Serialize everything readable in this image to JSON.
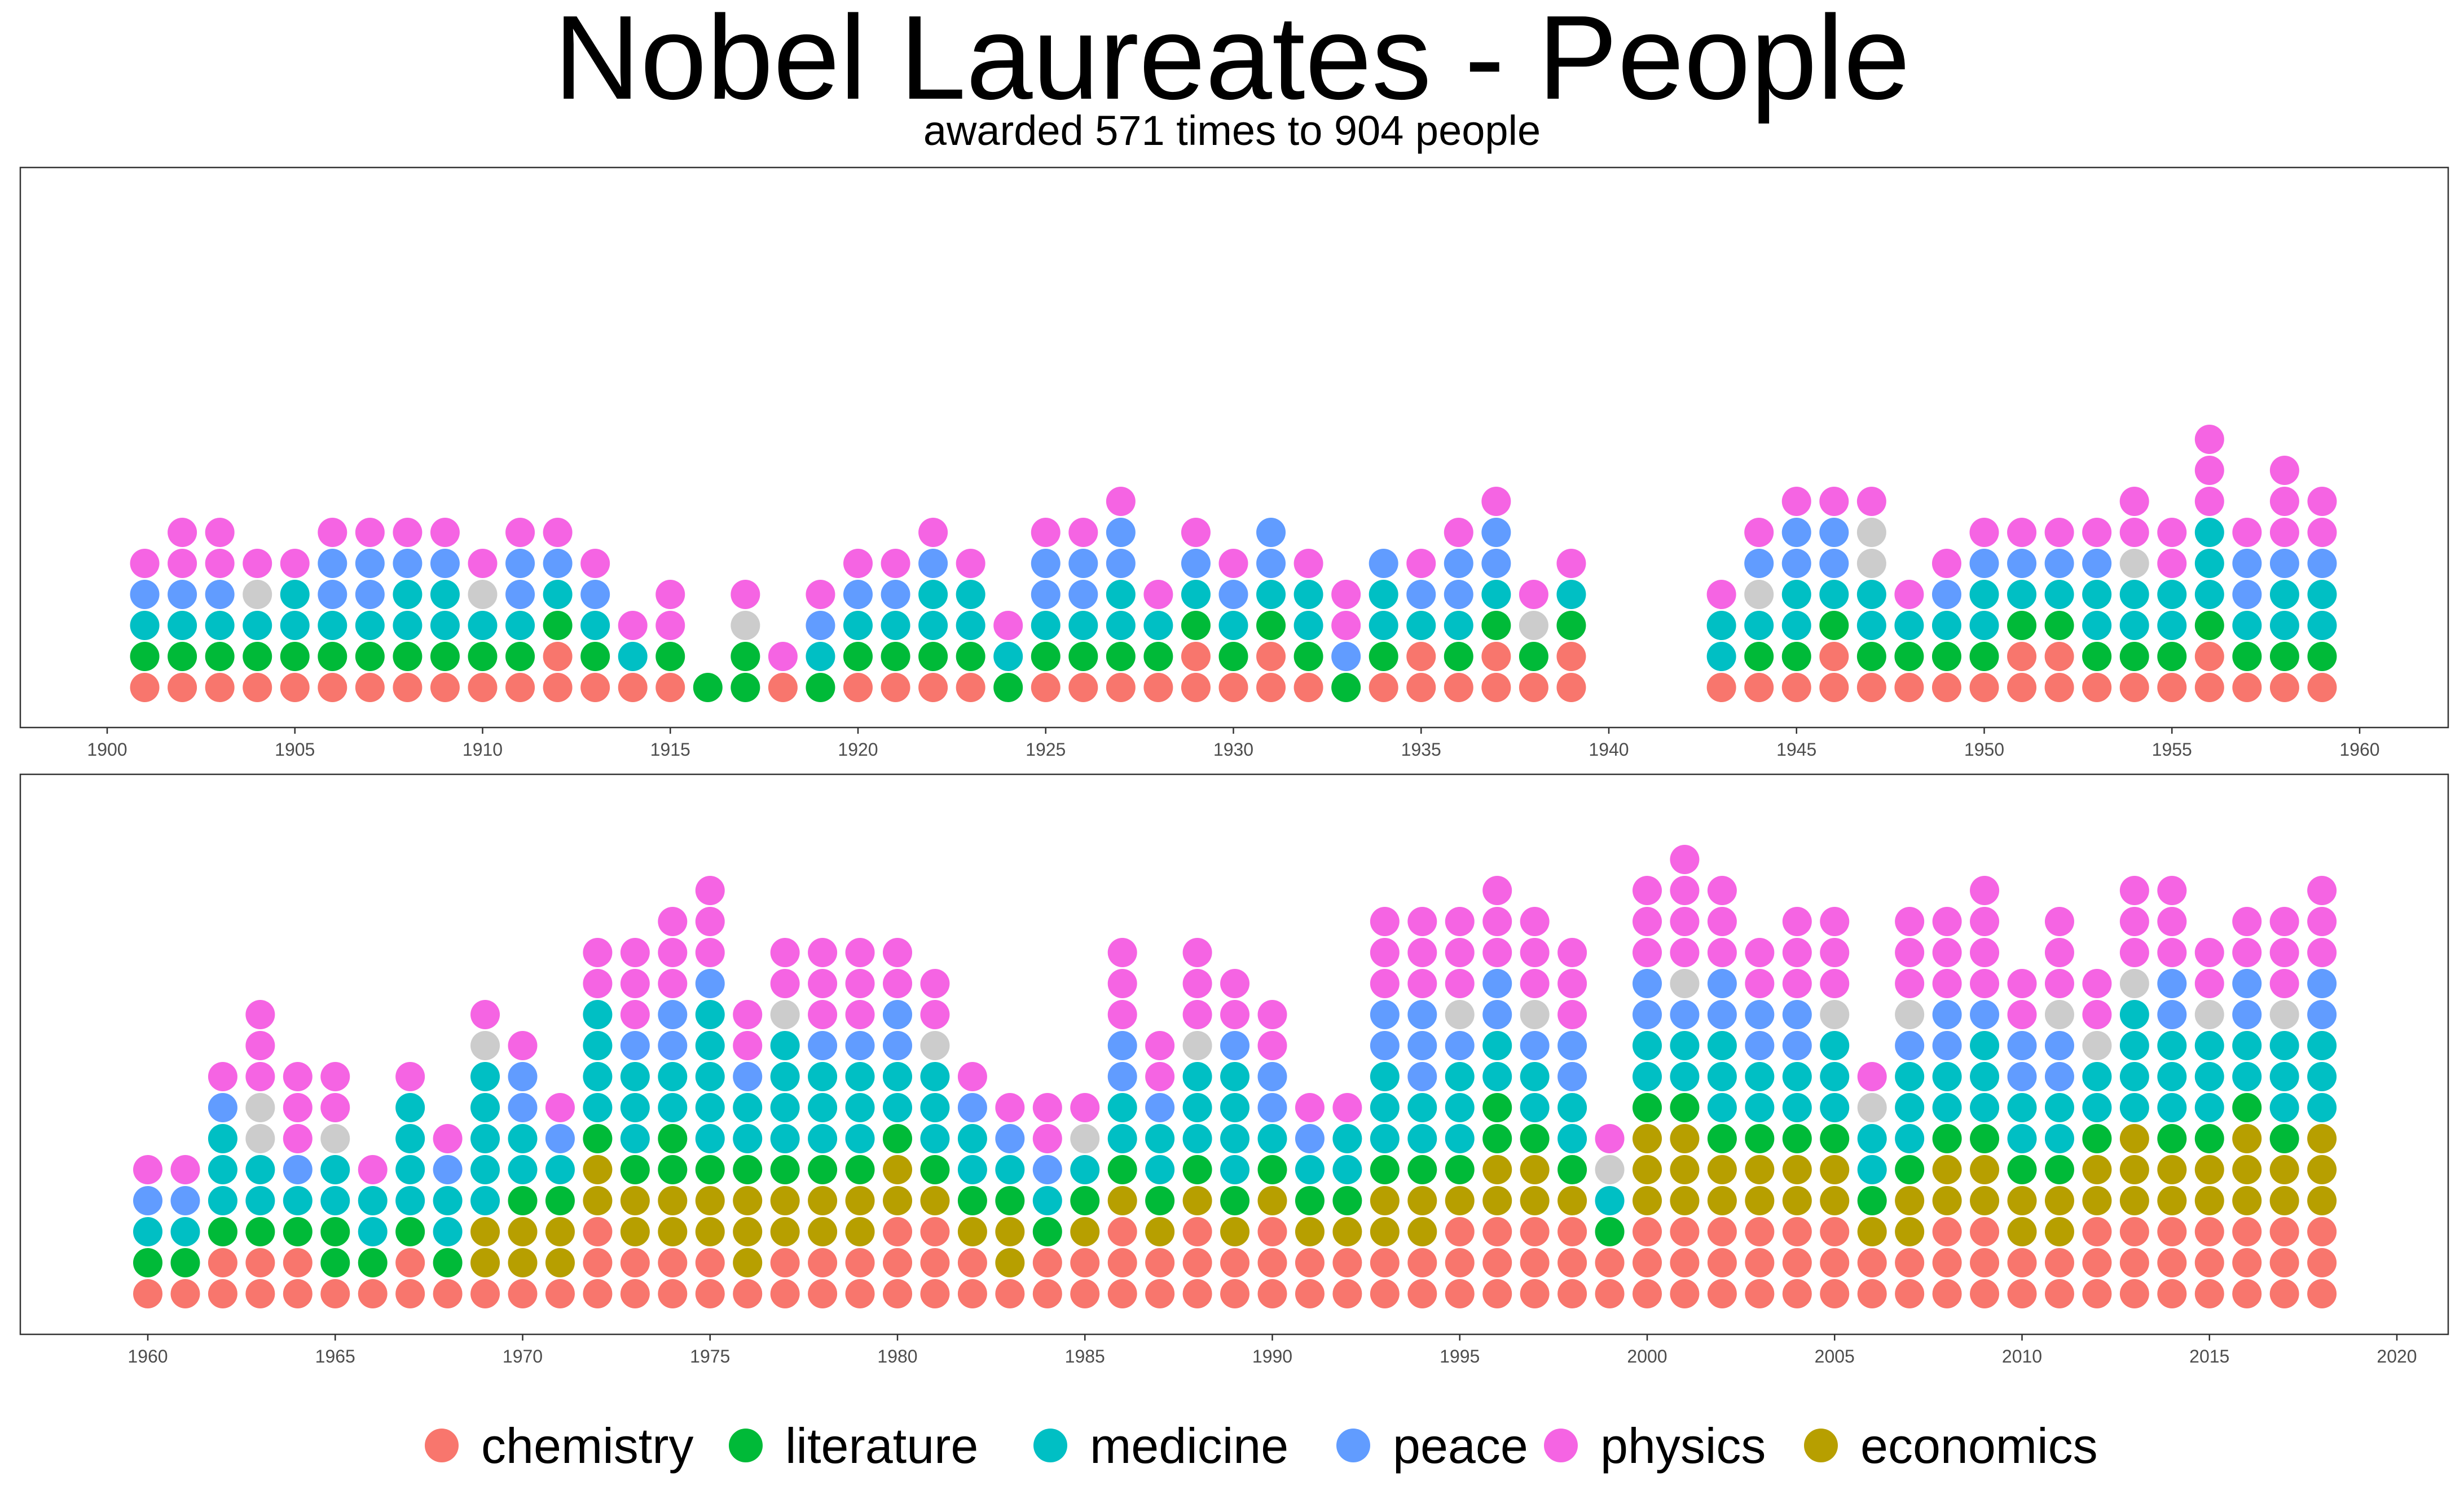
{
  "title": "Nobel Laureates - People",
  "subtitle": "awarded 571 times to 904 people",
  "categories": [
    "chemistry",
    "literature",
    "medicine",
    "peace",
    "physics",
    "economics"
  ],
  "colors": {
    "chemistry": "#F8766D",
    "literature": "#00BA38",
    "medicine": "#00BFC4",
    "peace": "#619CFF",
    "physics": "#F564E3",
    "economics": "#B79F00",
    "other": "#CCCCCC"
  },
  "chart_data": {
    "type": "scatter",
    "title": "Nobel Laureates - People",
    "subtitle": "awarded 571 times to 904 people",
    "legend_position": "bottom",
    "grid": false,
    "panels": [
      {
        "xlim": [
          1900,
          1960
        ],
        "x_ticks": [
          1900,
          1905,
          1910,
          1915,
          1920,
          1925,
          1930,
          1935,
          1940,
          1945,
          1950,
          1955,
          1960
        ],
        "max_stack": 9
      },
      {
        "xlim": [
          1960,
          2020
        ],
        "x_ticks": [
          1960,
          1965,
          1970,
          1975,
          1980,
          1985,
          1990,
          1995,
          2000,
          2005,
          2010,
          2015,
          2020
        ],
        "max_stack": 16
      }
    ],
    "years": [
      {
        "year": 1901,
        "stack": "CLMPH"
      },
      {
        "year": 1902,
        "stack": "CLMPHH"
      },
      {
        "year": 1903,
        "stack": "CLMPHH"
      },
      {
        "year": 1904,
        "stack": "CLMXH"
      },
      {
        "year": 1905,
        "stack": "CLMMH"
      },
      {
        "year": 1906,
        "stack": "CLMPPH"
      },
      {
        "year": 1907,
        "stack": "CLMPPH"
      },
      {
        "year": 1908,
        "stack": "CLMMPH"
      },
      {
        "year": 1909,
        "stack": "CLMMPH"
      },
      {
        "year": 1910,
        "stack": "CLMXH"
      },
      {
        "year": 1911,
        "stack": "CLMPPH"
      },
      {
        "year": 1912,
        "stack": "CCLMPH"
      },
      {
        "year": 1913,
        "stack": "CLMPH"
      },
      {
        "year": 1914,
        "stack": "CMH"
      },
      {
        "year": 1915,
        "stack": "CLHH"
      },
      {
        "year": 1916,
        "stack": "L"
      },
      {
        "year": 1917,
        "stack": "LLXH"
      },
      {
        "year": 1918,
        "stack": "CH"
      },
      {
        "year": 1919,
        "stack": "LMPH"
      },
      {
        "year": 1920,
        "stack": "CLMPH"
      },
      {
        "year": 1921,
        "stack": "CLMPH"
      },
      {
        "year": 1922,
        "stack": "CLMMPH"
      },
      {
        "year": 1923,
        "stack": "CLMMH"
      },
      {
        "year": 1924,
        "stack": "LMH"
      },
      {
        "year": 1925,
        "stack": "CLMPPH"
      },
      {
        "year": 1926,
        "stack": "CLMPPH"
      },
      {
        "year": 1927,
        "stack": "CLMMPPH"
      },
      {
        "year": 1928,
        "stack": "CLMH"
      },
      {
        "year": 1929,
        "stack": "CCLMPH"
      },
      {
        "year": 1930,
        "stack": "CLMPH"
      },
      {
        "year": 1931,
        "stack": "CCLMPP"
      },
      {
        "year": 1932,
        "stack": "CLMMH"
      },
      {
        "year": 1933,
        "stack": "LPHH"
      },
      {
        "year": 1934,
        "stack": "CLMMP"
      },
      {
        "year": 1935,
        "stack": "CCMPH"
      },
      {
        "year": 1936,
        "stack": "CLMPPH"
      },
      {
        "year": 1937,
        "stack": "CCLMPPH"
      },
      {
        "year": 1938,
        "stack": "CLXH"
      },
      {
        "year": 1939,
        "stack": "CCLMH"
      },
      {
        "year": 1943,
        "stack": "CMMH"
      },
      {
        "year": 1944,
        "stack": "CLMXPH"
      },
      {
        "year": 1945,
        "stack": "CLMMPPH"
      },
      {
        "year": 1946,
        "stack": "CCLMPPH"
      },
      {
        "year": 1947,
        "stack": "CLMMXXH"
      },
      {
        "year": 1948,
        "stack": "CLMH"
      },
      {
        "year": 1949,
        "stack": "CLMPH"
      },
      {
        "year": 1950,
        "stack": "CLMMPH"
      },
      {
        "year": 1951,
        "stack": "CCLMPH"
      },
      {
        "year": 1952,
        "stack": "CCLMPH"
      },
      {
        "year": 1953,
        "stack": "CLMMPH"
      },
      {
        "year": 1954,
        "stack": "CLMMXHH"
      },
      {
        "year": 1955,
        "stack": "CLMMHH"
      },
      {
        "year": 1956,
        "stack": "CCLMMMHHH"
      },
      {
        "year": 1957,
        "stack": "CLMPPH"
      },
      {
        "year": 1958,
        "stack": "CLMMPHHH"
      },
      {
        "year": 1959,
        "stack": "CLMMPHH"
      },
      {
        "year": 1960,
        "stack": "CLMPH"
      },
      {
        "year": 1961,
        "stack": "CLMPH"
      },
      {
        "year": 1962,
        "stack": "CCLMMMPH"
      },
      {
        "year": 1963,
        "stack": "CCLMMXXHHH"
      },
      {
        "year": 1964,
        "stack": "CCLMPHHH"
      },
      {
        "year": 1965,
        "stack": "CLLMMXHH"
      },
      {
        "year": 1966,
        "stack": "CLMMH"
      },
      {
        "year": 1967,
        "stack": "CCLMMMMH"
      },
      {
        "year": 1968,
        "stack": "CLMMPH"
      },
      {
        "year": 1969,
        "stack": "CEEMMMMMXH"
      },
      {
        "year": 1970,
        "stack": "CEELMMPPH"
      },
      {
        "year": 1971,
        "stack": "CEELMPH"
      },
      {
        "year": 1972,
        "stack": "CCCEELMMMMHH"
      },
      {
        "year": 1973,
        "stack": "CCEELMMMPHHH"
      },
      {
        "year": 1974,
        "stack": "CCEELLMMPPHHH"
      },
      {
        "year": 1975,
        "stack": "CCEELMMMMMPHHH"
      },
      {
        "year": 1976,
        "stack": "CEEELMMPHH"
      },
      {
        "year": 1977,
        "stack": "CCEELMMMMXHH"
      },
      {
        "year": 1978,
        "stack": "CCEELMMMPHHH"
      },
      {
        "year": 1979,
        "stack": "CCEELMMMPHHH"
      },
      {
        "year": 1980,
        "stack": "CCCEELMMPPHH"
      },
      {
        "year": 1981,
        "stack": "CCCELMMMXHH"
      },
      {
        "year": 1982,
        "stack": "CCELMMPH"
      },
      {
        "year": 1983,
        "stack": "CEELMPH"
      },
      {
        "year": 1984,
        "stack": "CCLMPHH"
      },
      {
        "year": 1985,
        "stack": "CCELMXH"
      },
      {
        "year": 1986,
        "stack": "CCCELMMPPHHH"
      },
      {
        "year": 1987,
        "stack": "CCELMMPHH"
      },
      {
        "year": 1988,
        "stack": "CCCELMMMXHHH"
      },
      {
        "year": 1989,
        "stack": "CCELMMMMPHH"
      },
      {
        "year": 1990,
        "stack": "CCCELMPPHH"
      },
      {
        "year": 1991,
        "stack": "CCELMPH"
      },
      {
        "year": 1992,
        "stack": "CCELMMH"
      },
      {
        "year": 1993,
        "stack": "CCEELMMMPPHHH"
      },
      {
        "year": 1994,
        "stack": "CCEELMMPPPHHH"
      },
      {
        "year": 1995,
        "stack": "CCCELMMMPXHHH"
      },
      {
        "year": 1996,
        "stack": "CCCEELLMMPPHHH"
      },
      {
        "year": 1997,
        "stack": "CCCEELMMPXHHH"
      },
      {
        "year": 1998,
        "stack": "CCCELMMPPHHH"
      },
      {
        "year": 1999,
        "stack": "CCLMXH"
      },
      {
        "year": 2000,
        "stack": "CCCEEELMMPPHHH"
      },
      {
        "year": 2001,
        "stack": "CCCEEELMMPXHHHH"
      },
      {
        "year": 2002,
        "stack": "CCCEELMMMPPHHH"
      },
      {
        "year": 2003,
        "stack": "CCCEELMMPPHH"
      },
      {
        "year": 2004,
        "stack": "CCCEELMMPPHHH"
      },
      {
        "year": 2005,
        "stack": "CCCEELMMMXHHH"
      },
      {
        "year": 2006,
        "stack": "CCELMMXH"
      },
      {
        "year": 2007,
        "stack": "CCEELMMMPXHHH"
      },
      {
        "year": 2008,
        "stack": "CCCEELMMPPHHH"
      },
      {
        "year": 2009,
        "stack": "CCCEELMMMPHHHH"
      },
      {
        "year": 2010,
        "stack": "CCEELMMPPHH"
      },
      {
        "year": 2011,
        "stack": "CCEELMMPPXHHH"
      },
      {
        "year": 2012,
        "stack": "CCCEELMMXHH"
      },
      {
        "year": 2013,
        "stack": "CCCEEEMMMMXHHH"
      },
      {
        "year": 2014,
        "stack": "CCCEELMMMPPHHH"
      },
      {
        "year": 2015,
        "stack": "CCCEELMMMXHH"
      },
      {
        "year": 2016,
        "stack": "CCCEEELMMPPHH"
      },
      {
        "year": 2017,
        "stack": "CCCEELMMMXHHH"
      },
      {
        "year": 2018,
        "stack": "CCCEEEMMMPPHHH"
      }
    ]
  }
}
